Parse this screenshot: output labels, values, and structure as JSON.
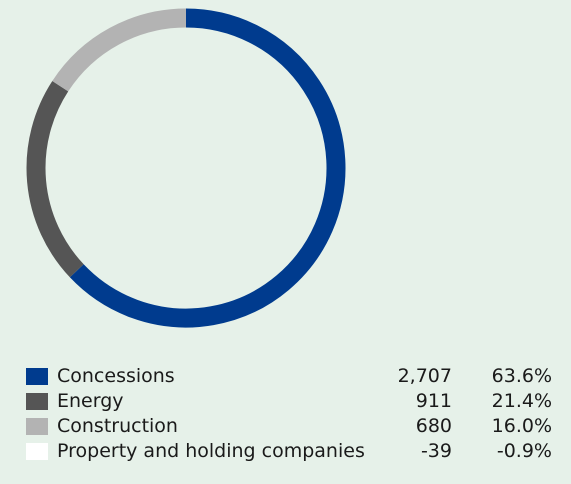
{
  "chart_data": {
    "type": "pie",
    "title": "",
    "categories": [
      "Concessions",
      "Energy",
      "Construction",
      "Property and holding companies"
    ],
    "values": [
      2707,
      911,
      680,
      -39
    ],
    "value_labels": [
      "2,707",
      "911",
      "680",
      "-39"
    ],
    "percentages": [
      63.6,
      21.4,
      16.0,
      -0.9
    ],
    "percentage_labels": [
      "63.6%",
      "21.4%",
      "16.0%",
      "-0.9%"
    ],
    "colors": [
      "#003b8e",
      "#555555",
      "#b3b3b3",
      "#ffffff"
    ],
    "legend_position": "bottom"
  }
}
